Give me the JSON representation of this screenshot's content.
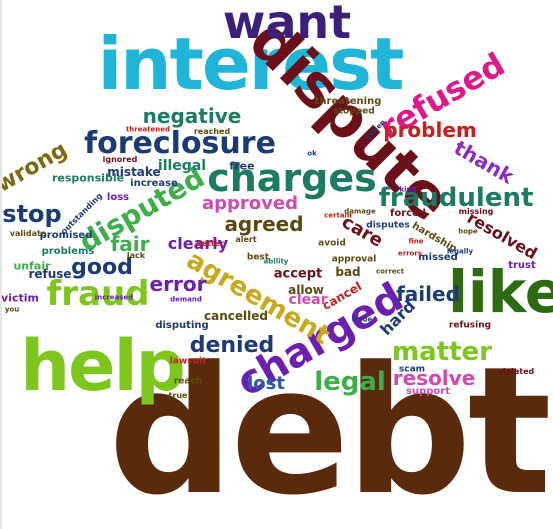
{
  "words": {
    "debt": "debt",
    "interest": "interest",
    "dispute": "dispute",
    "want": "want",
    "help": "help",
    "like": "like",
    "charged": "charged",
    "charges": "charges",
    "foreclosure": "foreclosure",
    "fraud": "fraud",
    "refused": "refused",
    "disputed": "disputed",
    "agreement": "agreement",
    "fraudulent": "fraudulent",
    "matter": "matter",
    "legal": "legal",
    "problem": "problem",
    "negative": "negative",
    "wrong": "wrong",
    "stop": "stop",
    "thank": "thank",
    "denied": "denied",
    "good": "good",
    "error": "error",
    "fair": "fair",
    "resolve": "resolve",
    "failed": "failed",
    "agreed": "agreed",
    "approved": "approved",
    "care": "care",
    "resolved": "resolved",
    "lost": "lost",
    "clearly": "clearly",
    "illegal": "illegal",
    "mistake": "mistake",
    "hard": "hard",
    "clear": "clear",
    "accept": "accept",
    "allow": "allow",
    "bad": "bad",
    "cancel": "cancel",
    "cancelled": "cancelled",
    "responsible": "responsible",
    "refuse": "refuse",
    "unfair": "unfair",
    "victim": "victim",
    "promised": "promised",
    "problems": "problems",
    "threatening": "threatening",
    "stopped": "stopped",
    "increase": "increase",
    "loss": "loss",
    "free": "free",
    "best": "best",
    "trust": "trust",
    "disputing": "disputing",
    "support": "support",
    "missed": "missed",
    "refusing": "refusing",
    "hardship": "hardship",
    "scam": "scam",
    "forced": "forced",
    "disputes": "disputes",
    "approval": "approval",
    "avoid": "avoid",
    "validate": "validate",
    "outstanding": "outstanding",
    "reach": "reach",
    "lawsuit": "lawsuit",
    "true": "true",
    "better": "better",
    "alert": "alert",
    "ignored": "ignored",
    "reached": "reached",
    "threatened": "threatened",
    "lack": "lack",
    "violated": "violated",
    "missing": "missing",
    "legally": "legally",
    "errors": "errors",
    "increased": "increased",
    "demand": "demand",
    "damage": "damage",
    "certain": "certain",
    "correct": "correct",
    "ability": "ability",
    "stolen": "stolen",
    "kind": "kind",
    "fine": "fine",
    "hope": "hope",
    "issue": "issue",
    "you": "you",
    "ok": "ok"
  },
  "colors": {
    "brown": "#5a2a0c",
    "cyan": "#1fb4d8",
    "maroon": "#6b0f1a",
    "indigo": "#3b1f7a",
    "lime": "#7ec61d",
    "green": "#2e6a10",
    "purple": "#6a1fb0",
    "teal": "#1d7a64",
    "navy": "#1c3a74",
    "olive": "#7a6a10",
    "magenta": "#e0178a",
    "red": "#c81e1e",
    "gold": "#c9a81b",
    "blue": "#2a5aa8",
    "violet": "#8a2bc2",
    "pink": "#d04ab0",
    "orange": "#d0762a",
    "aqua": "#19b3b0",
    "lightgreen": "#3cae4a",
    "grey": "#7a7a7a"
  }
}
